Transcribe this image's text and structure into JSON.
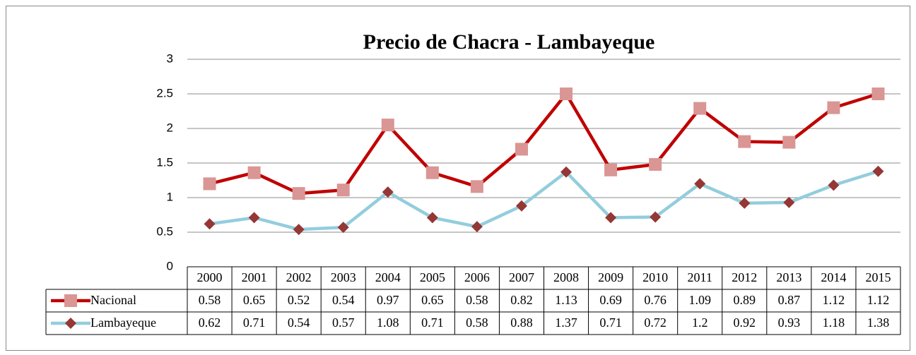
{
  "chart_data": {
    "type": "line",
    "stacked": true,
    "title": "Precio de Chacra - Lambayeque",
    "categories": [
      "2000",
      "2001",
      "2002",
      "2003",
      "2004",
      "2005",
      "2006",
      "2007",
      "2008",
      "2009",
      "2010",
      "2011",
      "2012",
      "2013",
      "2014",
      "2015"
    ],
    "series": [
      {
        "name": "Nacional",
        "color": "#C00000",
        "marker": "square",
        "marker_color": "#D99694",
        "values": [
          0.58,
          0.65,
          0.52,
          0.54,
          0.97,
          0.65,
          0.58,
          0.82,
          1.13,
          0.69,
          0.76,
          1.09,
          0.89,
          0.87,
          1.12,
          1.12
        ]
      },
      {
        "name": "Lambayeque",
        "color": "#93CDDD",
        "marker": "diamond",
        "marker_color": "#953735",
        "values": [
          0.62,
          0.71,
          0.54,
          0.57,
          1.08,
          0.71,
          0.58,
          0.88,
          1.37,
          0.71,
          0.72,
          1.2,
          0.92,
          0.93,
          1.18,
          1.38
        ]
      }
    ],
    "ylim": [
      0,
      3
    ],
    "yticks": [
      0,
      0.5,
      1,
      1.5,
      2,
      2.5,
      3
    ],
    "grid": true,
    "data_table": true
  }
}
